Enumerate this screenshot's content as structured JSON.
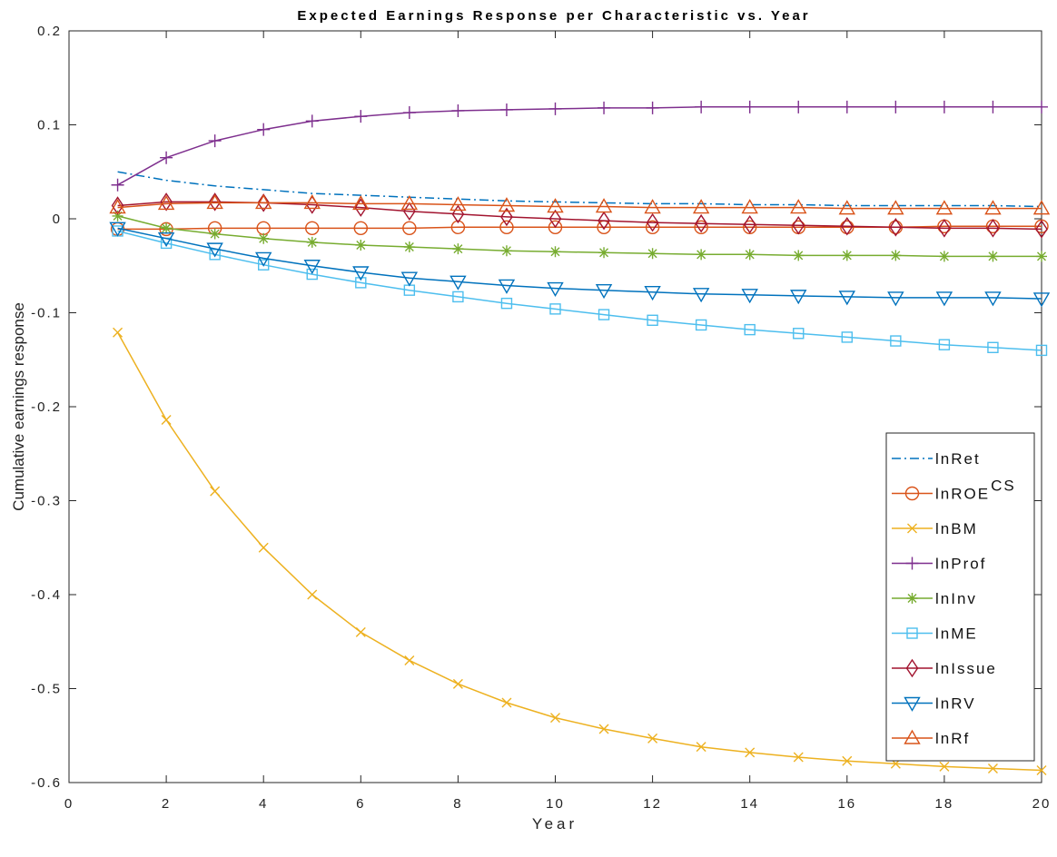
{
  "chart_data": {
    "type": "line",
    "title": "Expected Earnings Response per Characteristic vs. Year",
    "xlabel": "Year",
    "ylabel": "Cumulative earnings response",
    "xlim": [
      0,
      20
    ],
    "ylim": [
      -0.6,
      0.2
    ],
    "x_ticks": [
      "0",
      "2",
      "4",
      "6",
      "8",
      "10",
      "12",
      "14",
      "16",
      "18",
      "20"
    ],
    "y_ticks": [
      "0.2",
      "0.1",
      "0",
      "-0.1",
      "-0.2",
      "-0.3",
      "-0.4",
      "-0.5",
      "-0.6"
    ],
    "grid": false,
    "legend_position": "bottom-right",
    "x": [
      1,
      2,
      3,
      4,
      5,
      6,
      7,
      8,
      9,
      10,
      11,
      12,
      13,
      14,
      15,
      16,
      17,
      18,
      19,
      20
    ],
    "series": [
      {
        "name": "lnRet",
        "color": "#0072BD",
        "marker": "none",
        "dash": "dashdot",
        "values": [
          0.05,
          0.041,
          0.035,
          0.031,
          0.027,
          0.025,
          0.023,
          0.021,
          0.019,
          0.018,
          0.017,
          0.016,
          0.016,
          0.015,
          0.015,
          0.014,
          0.014,
          0.014,
          0.014,
          0.013
        ]
      },
      {
        "name": "lnROE",
        "name_superscript": "CS",
        "color": "#D95319",
        "marker": "circle",
        "dash": "solid",
        "values": [
          -0.011,
          -0.011,
          -0.01,
          -0.01,
          -0.01,
          -0.01,
          -0.01,
          -0.009,
          -0.009,
          -0.009,
          -0.009,
          -0.009,
          -0.009,
          -0.009,
          -0.009,
          -0.009,
          -0.009,
          -0.008,
          -0.008,
          -0.008
        ]
      },
      {
        "name": "lnBM",
        "color": "#EDB120",
        "marker": "x",
        "dash": "solid",
        "values": [
          -0.121,
          -0.214,
          -0.29,
          -0.35,
          -0.4,
          -0.44,
          -0.47,
          -0.495,
          -0.515,
          -0.531,
          -0.543,
          -0.553,
          -0.562,
          -0.568,
          -0.573,
          -0.577,
          -0.58,
          -0.583,
          -0.585,
          -0.587
        ]
      },
      {
        "name": "lnProf",
        "color": "#7E2F8E",
        "marker": "plus",
        "dash": "solid",
        "values": [
          0.036,
          0.065,
          0.083,
          0.095,
          0.104,
          0.109,
          0.113,
          0.115,
          0.116,
          0.117,
          0.118,
          0.118,
          0.119,
          0.119,
          0.119,
          0.119,
          0.119,
          0.119,
          0.119,
          0.119
        ]
      },
      {
        "name": "lnInv",
        "color": "#77AC30",
        "marker": "star",
        "dash": "solid",
        "values": [
          0.003,
          -0.01,
          -0.016,
          -0.021,
          -0.025,
          -0.028,
          -0.03,
          -0.032,
          -0.034,
          -0.035,
          -0.036,
          -0.037,
          -0.038,
          -0.038,
          -0.039,
          -0.039,
          -0.039,
          -0.04,
          -0.04,
          -0.04
        ]
      },
      {
        "name": "lnME",
        "color": "#4DBEEE",
        "marker": "square",
        "dash": "solid",
        "values": [
          -0.013,
          -0.026,
          -0.038,
          -0.049,
          -0.059,
          -0.068,
          -0.076,
          -0.083,
          -0.09,
          -0.096,
          -0.102,
          -0.108,
          -0.113,
          -0.118,
          -0.122,
          -0.126,
          -0.13,
          -0.134,
          -0.137,
          -0.14
        ]
      },
      {
        "name": "lnIssue",
        "color": "#A2142F",
        "marker": "diamond",
        "dash": "solid",
        "values": [
          0.014,
          0.018,
          0.018,
          0.017,
          0.015,
          0.012,
          0.008,
          0.005,
          0.002,
          0.0,
          -0.002,
          -0.004,
          -0.005,
          -0.006,
          -0.007,
          -0.008,
          -0.009,
          -0.01,
          -0.01,
          -0.011
        ]
      },
      {
        "name": "lnRV",
        "color": "#0072BD",
        "marker": "triangle-down",
        "dash": "solid",
        "values": [
          -0.01,
          -0.021,
          -0.032,
          -0.042,
          -0.05,
          -0.057,
          -0.063,
          -0.067,
          -0.071,
          -0.074,
          -0.076,
          -0.078,
          -0.08,
          -0.081,
          -0.082,
          -0.083,
          -0.084,
          -0.084,
          -0.084,
          -0.085
        ]
      },
      {
        "name": "lnRf",
        "color": "#D95319",
        "marker": "triangle-up",
        "dash": "solid",
        "values": [
          0.012,
          0.016,
          0.017,
          0.017,
          0.017,
          0.016,
          0.016,
          0.015,
          0.014,
          0.013,
          0.013,
          0.012,
          0.012,
          0.012,
          0.012,
          0.011,
          0.011,
          0.011,
          0.011,
          0.011
        ]
      }
    ]
  }
}
